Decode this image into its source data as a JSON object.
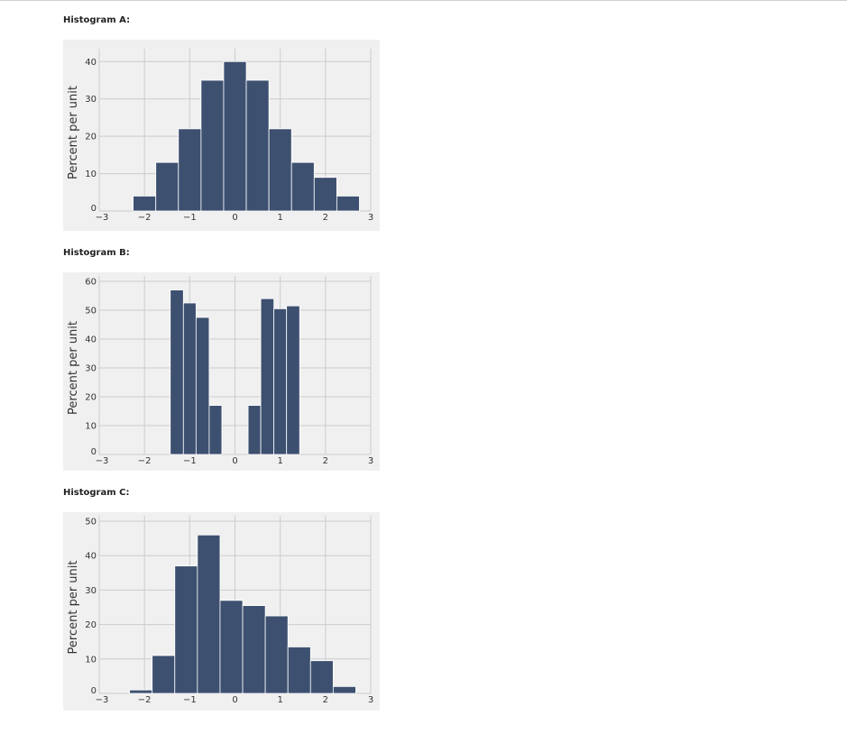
{
  "colors": {
    "bar": "#3d5070",
    "bar_edge": "#ffffff",
    "panel": "#f0f0f0",
    "grid": "#cccccc"
  },
  "chart_data": [
    {
      "type": "bar",
      "heading": "Histogram A:",
      "ylabel": "Percent per unit",
      "xlim": [
        -3,
        3
      ],
      "ylim": [
        0,
        42
      ],
      "xticks": [
        -3,
        -2,
        -1,
        0,
        1,
        2,
        3
      ],
      "yticks": [
        0,
        10,
        20,
        30,
        40
      ],
      "grid": true,
      "bins": [
        {
          "left": -2.25,
          "right": -1.75,
          "value": 4
        },
        {
          "left": -1.75,
          "right": -1.25,
          "value": 13
        },
        {
          "left": -1.25,
          "right": -0.75,
          "value": 22
        },
        {
          "left": -0.75,
          "right": -0.25,
          "value": 35
        },
        {
          "left": -0.25,
          "right": 0.25,
          "value": 40
        },
        {
          "left": 0.25,
          "right": 0.75,
          "value": 35
        },
        {
          "left": 0.75,
          "right": 1.25,
          "value": 22
        },
        {
          "left": 1.25,
          "right": 1.75,
          "value": 13
        },
        {
          "left": 1.75,
          "right": 2.25,
          "value": 9
        },
        {
          "left": 2.25,
          "right": 2.75,
          "value": 4
        }
      ]
    },
    {
      "type": "bar",
      "heading": "Histogram B:",
      "ylabel": "Percent per unit",
      "xlim": [
        -3,
        3
      ],
      "ylim": [
        0,
        60
      ],
      "xticks": [
        -3,
        -2,
        -1,
        0,
        1,
        2,
        3
      ],
      "yticks": [
        0,
        10,
        20,
        30,
        40,
        50,
        60
      ],
      "grid": true,
      "bins": [
        {
          "left": -1.43,
          "right": -1.14,
          "value": 57
        },
        {
          "left": -1.14,
          "right": -0.86,
          "value": 52.5
        },
        {
          "left": -0.86,
          "right": -0.57,
          "value": 47.5
        },
        {
          "left": -0.57,
          "right": -0.29,
          "value": 17
        },
        {
          "left": 0.29,
          "right": 0.57,
          "value": 17
        },
        {
          "left": 0.57,
          "right": 0.86,
          "value": 54
        },
        {
          "left": 0.86,
          "right": 1.14,
          "value": 50.5
        },
        {
          "left": 1.14,
          "right": 1.43,
          "value": 51.5
        }
      ]
    },
    {
      "type": "bar",
      "heading": "Histogram C:",
      "ylabel": "Percent per unit",
      "xlim": [
        -3,
        3
      ],
      "ylim": [
        0,
        50
      ],
      "xticks": [
        -3,
        -2,
        -1,
        0,
        1,
        2,
        3
      ],
      "yticks": [
        0,
        10,
        20,
        30,
        40,
        50
      ],
      "grid": true,
      "bins": [
        {
          "left": -2.33,
          "right": -1.83,
          "value": 1
        },
        {
          "left": -1.83,
          "right": -1.33,
          "value": 11
        },
        {
          "left": -1.33,
          "right": -0.83,
          "value": 37
        },
        {
          "left": -0.83,
          "right": -0.33,
          "value": 46
        },
        {
          "left": -0.33,
          "right": 0.17,
          "value": 27
        },
        {
          "left": 0.17,
          "right": 0.67,
          "value": 25.5
        },
        {
          "left": 0.67,
          "right": 1.17,
          "value": 22.5
        },
        {
          "left": 1.17,
          "right": 1.67,
          "value": 13.5
        },
        {
          "left": 1.67,
          "right": 2.17,
          "value": 9.5
        },
        {
          "left": 2.17,
          "right": 2.67,
          "value": 2
        }
      ]
    }
  ]
}
